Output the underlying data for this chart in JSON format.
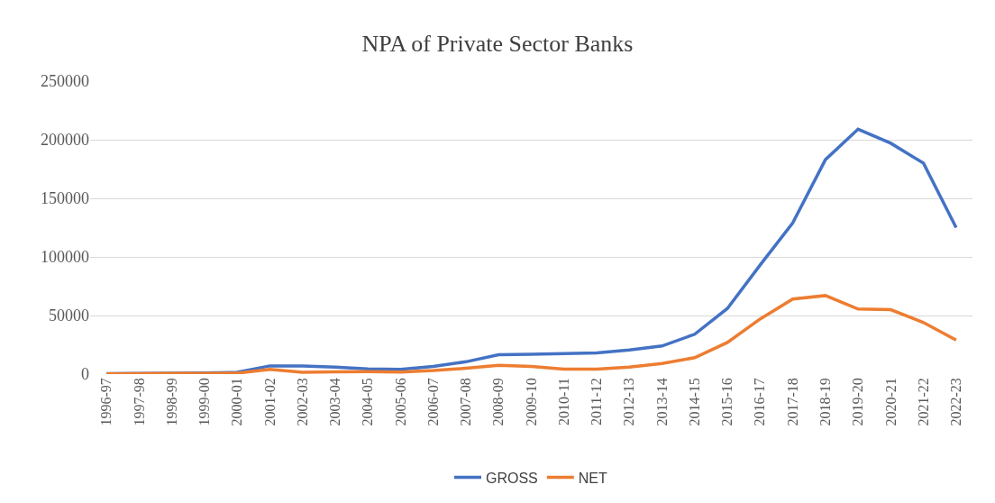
{
  "chart_data": {
    "type": "line",
    "title": "NPA of Private Sector Banks",
    "categories": [
      "1996-97",
      "1997-98",
      "1998-99",
      "1999-00",
      "2000-01",
      "2001-02",
      "2002-03",
      "2003-04",
      "2004-05",
      "2005-06",
      "2006-07",
      "2007-08",
      "2008-09",
      "2009-10",
      "2010-11",
      "2011-12",
      "2012-13",
      "2013-14",
      "2014-15",
      "2015-16",
      "2016-17",
      "2017-18",
      "2018-19",
      "2019-20",
      "2020-21",
      "2021-22",
      "2022-23"
    ],
    "series": [
      {
        "name": "GROSS",
        "color": "#4472c4",
        "values": [
          400,
          500,
          800,
          900,
          1500,
          7000,
          7000,
          6000,
          4500,
          4000,
          6500,
          10500,
          16500,
          17000,
          17500,
          18000,
          20500,
          24000,
          34000,
          56000,
          93000,
          129000,
          183000,
          209000,
          197000,
          180000,
          125000
        ]
      },
      {
        "name": "NET",
        "color": "#ed7d31",
        "values": [
          200,
          300,
          500,
          600,
          800,
          4000,
          1500,
          2000,
          2200,
          1800,
          3000,
          5000,
          7500,
          6500,
          4200,
          4200,
          6000,
          9000,
          14000,
          27000,
          47000,
          64000,
          67000,
          55500,
          55000,
          44000,
          29000
        ]
      }
    ],
    "ylim": [
      0,
      250000
    ],
    "yticks": [
      0,
      50000,
      100000,
      150000,
      200000,
      250000
    ],
    "grid": "y",
    "legend": "bottom",
    "marker": "none",
    "line_style": "solid"
  }
}
